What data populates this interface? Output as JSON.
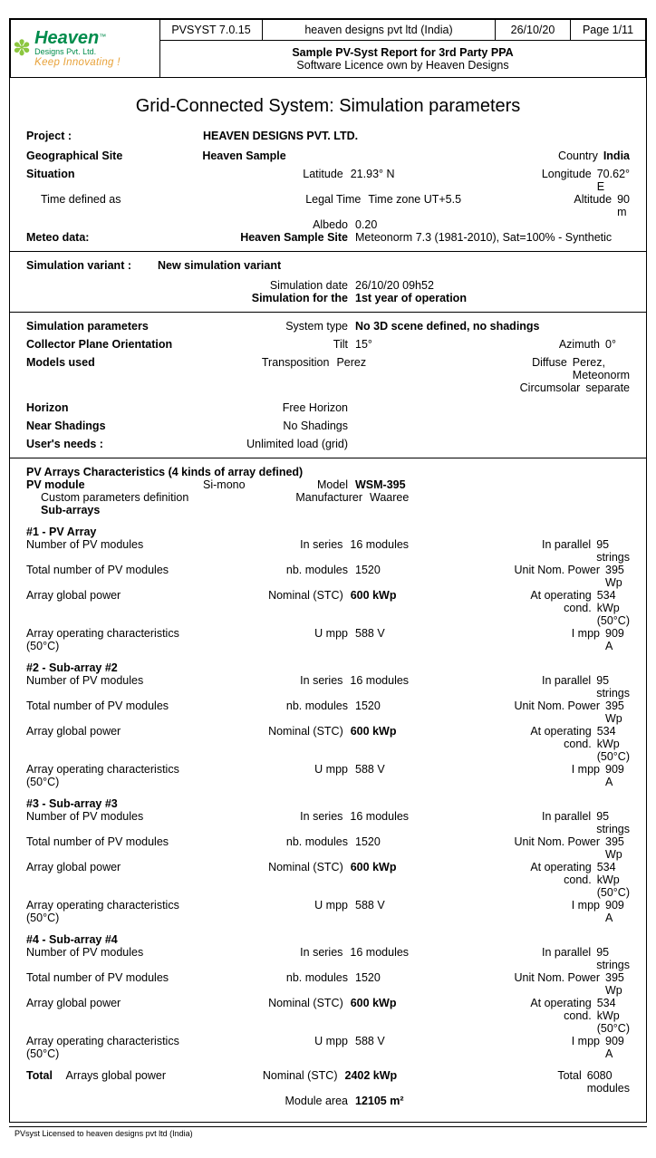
{
  "header": {
    "software": "PVSYST 7.0.15",
    "company": "heaven designs pvt ltd (India)",
    "date": "26/10/20",
    "page": "Page 1/11",
    "title_bold": "Sample PV-Syst Report for 3rd Party PPA",
    "title_sub": "Software Licence own by Heaven Designs",
    "logo_main": "Heaven",
    "logo_sub": "Designs Pvt. Ltd.",
    "logo_tag": "Keep Innovating !"
  },
  "doc_title": "Grid-Connected System: Simulation parameters",
  "project": {
    "label": "Project :",
    "name": "HEAVEN DESIGNS PVT. LTD.",
    "geo_label": "Geographical  Site",
    "geo_value": "Heaven  Sample",
    "country_label": "Country",
    "country": "India",
    "situation_label": "Situation",
    "latitude_label": "Latitude",
    "latitude": "21.93° N",
    "longitude_label": "Longitude",
    "longitude": "70.62° E",
    "time_def_label": "Time defined as",
    "legal_time_label": "Legal Time",
    "legal_time": "Time zone UT+5.5",
    "altitude_label": "Altitude",
    "altitude": "90 m",
    "albedo_label": "Albedo",
    "albedo": "0.20",
    "meteo_label": "Meteo data:",
    "meteo_site": "Heaven  Sample  Site",
    "meteo_val": "Meteonorm 7.3 (1981-2010), Sat=100% - Synthetic"
  },
  "sim_variant": {
    "label": "Simulation variant :",
    "name": "New simulation variant",
    "date_label": "Simulation date",
    "date": "26/10/20 09h52",
    "for_label": "Simulation for the",
    "for_value": "1st year of operation"
  },
  "params": {
    "sim_params_label": "Simulation  parameters",
    "system_type_label": "System  type",
    "system_type": "No 3D scene defined, no shadings",
    "collector_label": "Collector  Plane  Orientation",
    "tilt_label": "Tilt",
    "tilt": "15°",
    "azimuth_label": "Azimuth",
    "azimuth": "0°",
    "models_label": "Models used",
    "transposition_label": "Transposition",
    "transposition": "Perez",
    "diffuse_label": "Diffuse",
    "diffuse": "Perez, Meteonorm",
    "circumsolar_label": "Circumsolar",
    "circumsolar": "separate",
    "horizon_label": "Horizon",
    "horizon": "Free Horizon",
    "shadings_label": "Near  Shadings",
    "shadings": "No Shadings",
    "needs_label": "User's needs :",
    "needs": "Unlimited load (grid)"
  },
  "pv": {
    "chars_label": "PV Arrays Characteristics   (4  kinds of array defined)",
    "module_label": "PV  module",
    "module_type": "Si-mono",
    "model_label": "Model",
    "model": "WSM-395",
    "custom_label": "Custom parameters definition",
    "manufacturer_label": "Manufacturer",
    "manufacturer": "Waaree",
    "subarrays_label": "Sub-arrays",
    "arrays": [
      {
        "title": "#1 - PV Array",
        "n_series": "16 modules",
        "n_parallel": "95 strings",
        "nb_modules": "1520",
        "unit_power": "395 Wp",
        "nominal": "600 kWp",
        "op_cond": "534 kWp (50°C)",
        "umpp": "588 V",
        "impp": "909 A"
      },
      {
        "title": "#2 - Sub-array #2",
        "n_series": "16 modules",
        "n_parallel": "95 strings",
        "nb_modules": "1520",
        "unit_power": "395 Wp",
        "nominal": "600 kWp",
        "op_cond": "534 kWp (50°C)",
        "umpp": "588 V",
        "impp": "909 A"
      },
      {
        "title": "#3 - Sub-array #3",
        "n_series": "16 modules",
        "n_parallel": "95 strings",
        "nb_modules": "1520",
        "unit_power": "395 Wp",
        "nominal": "600 kWp",
        "op_cond": "534 kWp (50°C)",
        "umpp": "588 V",
        "impp": "909 A"
      },
      {
        "title": "#4 - Sub-array #4",
        "n_series": "16 modules",
        "n_parallel": "95 strings",
        "nb_modules": "1520",
        "unit_power": "395 Wp",
        "nominal": "600 kWp",
        "op_cond": "534 kWp (50°C)",
        "umpp": "588 V",
        "impp": "909 A"
      }
    ],
    "row_labels": {
      "n_pv": "Number of PV modules",
      "in_series": "In series",
      "in_parallel": "In parallel",
      "total_pv": "Total number of PV modules",
      "nb_modules": "nb. modules",
      "unit_power": "Unit Nom. Power",
      "global_power": "Array global power",
      "nominal": "Nominal (STC)",
      "op_cond": "At operating cond.",
      "op_char": "Array operating characteristics (50°C)",
      "umpp": "U mpp",
      "impp": "I mpp"
    },
    "total": {
      "label": "Total",
      "gp_label": "Arrays global power",
      "nominal_label": "Nominal (STC)",
      "nominal": "2402 kWp",
      "total_label": "Total",
      "modules": "6080 modules",
      "area_label": "Module area",
      "area": "12105 m²"
    }
  },
  "footer": "PVsyst Licensed to  heaven designs pvt ltd (India)"
}
